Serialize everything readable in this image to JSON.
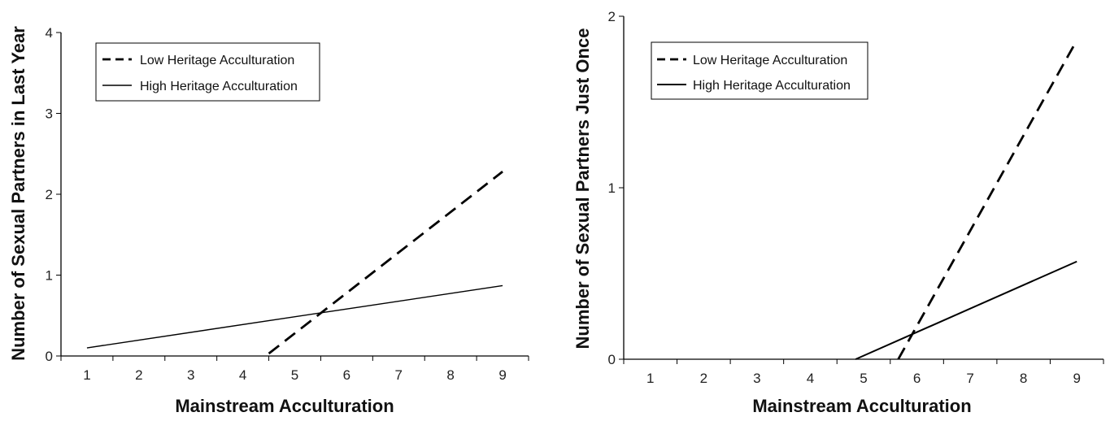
{
  "chart_data": [
    {
      "type": "line",
      "title": "",
      "xlabel": "Mainstream Acculturation",
      "ylabel": "Number of Sexual Partners in Last Year",
      "x_ticks": [
        1,
        2,
        3,
        4,
        5,
        6,
        7,
        8,
        9
      ],
      "y_ticks": [
        0,
        1,
        2,
        3,
        4
      ],
      "xlim": [
        0.5,
        9.5
      ],
      "ylim": [
        0,
        4
      ],
      "grid": false,
      "legend_position": "top-left",
      "series": [
        {
          "name": "Low Heritage Acculturation",
          "style": "dashed",
          "x": [
            4.5,
            9
          ],
          "y": [
            0.03,
            2.28
          ]
        },
        {
          "name": "High Heritage Acculturation",
          "style": "solid",
          "x": [
            1,
            9
          ],
          "y": [
            0.1,
            0.87
          ]
        }
      ]
    },
    {
      "type": "line",
      "title": "",
      "xlabel": "Mainstream Acculturation",
      "ylabel": "Number of Sexual Partners Just Once",
      "x_ticks": [
        1,
        2,
        3,
        4,
        5,
        6,
        7,
        8,
        9
      ],
      "y_ticks": [
        0,
        1,
        2
      ],
      "xlim": [
        0.5,
        9.5
      ],
      "ylim": [
        0,
        2
      ],
      "grid": false,
      "legend_position": "top-left",
      "series": [
        {
          "name": "Low Heritage Acculturation",
          "style": "dashed",
          "x": [
            5.65,
            9
          ],
          "y": [
            0,
            1.86
          ]
        },
        {
          "name": "High Heritage Acculturation",
          "style": "solid",
          "x": [
            4.85,
            9
          ],
          "y": [
            0,
            0.57
          ]
        }
      ]
    }
  ]
}
